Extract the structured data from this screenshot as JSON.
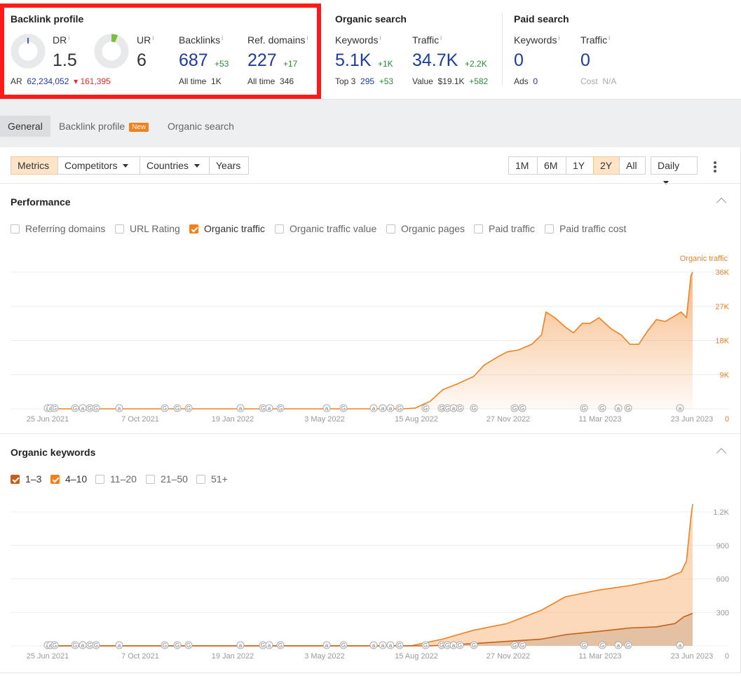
{
  "backlink_profile": {
    "title": "Backlink profile",
    "dr_label": "DR",
    "dr_value": "1.5",
    "ur_label": "UR",
    "ur_value": "6",
    "ar_label": "AR",
    "ar_value": "62,234,052",
    "ar_delta": "161,395",
    "backlinks_label": "Backlinks",
    "backlinks_value": "687",
    "backlinks_delta": "+53",
    "backlinks_alltime_label": "All time",
    "backlinks_alltime_value": "1K",
    "refdomains_label": "Ref. domains",
    "refdomains_value": "227",
    "refdomains_delta": "+17",
    "refdomains_alltime_label": "All time",
    "refdomains_alltime_value": "346"
  },
  "organic_search": {
    "title": "Organic search",
    "keywords_label": "Keywords",
    "keywords_value": "5.1K",
    "keywords_delta": "+1K",
    "top3_label": "Top 3",
    "top3_value": "295",
    "top3_delta": "+53",
    "traffic_label": "Traffic",
    "traffic_value": "34.7K",
    "traffic_delta": "+2.2K",
    "value_label": "Value",
    "value_value": "$19.1K",
    "value_delta": "+582"
  },
  "paid_search": {
    "title": "Paid search",
    "keywords_label": "Keywords",
    "keywords_value": "0",
    "ads_label": "Ads",
    "ads_value": "0",
    "traffic_label": "Traffic",
    "traffic_value": "0",
    "cost_label": "Cost",
    "cost_value": "N/A"
  },
  "tabs": {
    "general": "General",
    "backlink_profile": "Backlink profile",
    "new_badge": "New",
    "organic_search": "Organic search"
  },
  "toolbar": {
    "metrics": "Metrics",
    "competitors": "Competitors",
    "countries": "Countries",
    "years": "Years",
    "range_1m": "1M",
    "range_6m": "6M",
    "range_1y": "1Y",
    "range_2y": "2Y",
    "range_all": "All",
    "granularity": "Daily"
  },
  "performance": {
    "title": "Performance",
    "checkboxes": [
      "Referring domains",
      "URL Rating",
      "Organic traffic",
      "Organic traffic value",
      "Organic pages",
      "Paid traffic",
      "Paid traffic cost"
    ]
  },
  "keywords_panel": {
    "title": "Organic keywords",
    "checkboxes": [
      "1–3",
      "4–10",
      "11–20",
      "21–50",
      "51+"
    ]
  },
  "colors": {
    "accent": "#f2801f",
    "accent_dark": "#c95f17",
    "blue": "#1d3c9c",
    "green": "#2b8a3e",
    "red": "#d9302c",
    "highlight_border": "#ff1a1a"
  },
  "chart_data": [
    {
      "type": "area",
      "title": "",
      "series": [
        {
          "name": "Organic traffic",
          "x": [
            "2021-06-25",
            "2021-10-07",
            "2022-01-19",
            "2022-05-03",
            "2022-08-01",
            "2022-08-15",
            "2022-09-01",
            "2022-09-15",
            "2022-10-01",
            "2022-10-20",
            "2022-11-01",
            "2022-11-15",
            "2022-11-27",
            "2022-12-10",
            "2022-12-25",
            "2023-01-05",
            "2023-01-10",
            "2023-01-20",
            "2023-02-01",
            "2023-02-10",
            "2023-02-20",
            "2023-03-01",
            "2023-03-11",
            "2023-03-25",
            "2023-04-05",
            "2023-04-15",
            "2023-04-25",
            "2023-05-05",
            "2023-05-15",
            "2023-05-25",
            "2023-06-05",
            "2023-06-12",
            "2023-06-18",
            "2023-06-23",
            "2023-06-25"
          ],
          "values": [
            0,
            0,
            0,
            0,
            0,
            200,
            2000,
            5000,
            6500,
            8500,
            11500,
            13500,
            15000,
            15500,
            17000,
            19500,
            25500,
            24000,
            21500,
            20000,
            22500,
            22500,
            24000,
            21000,
            19500,
            17000,
            17000,
            20500,
            23500,
            23000,
            24500,
            25500,
            24000,
            35000,
            36000
          ]
        }
      ],
      "yticks": [
        0,
        9000,
        18000,
        27000,
        36000
      ],
      "ytick_labels": [
        "0",
        "9K",
        "18K",
        "27K",
        "36K"
      ],
      "ylim": [
        0,
        36000
      ],
      "xtick_labels": [
        "25 Jun 2021",
        "7 Oct 2021",
        "19 Jan 2022",
        "3 May 2022",
        "15 Aug 2022",
        "27 Nov 2022",
        "11 Mar 2023",
        "23 Jun 2023"
      ],
      "legend": "Organic traffic",
      "legend_position": "top-right",
      "grid": true
    },
    {
      "type": "area",
      "title": "",
      "series": [
        {
          "name": "4–10",
          "x": [
            "2021-06-25",
            "2022-08-10",
            "2022-09-15",
            "2022-10-20",
            "2022-11-27",
            "2023-01-05",
            "2023-02-01",
            "2023-03-11",
            "2023-04-15",
            "2023-05-10",
            "2023-05-25",
            "2023-06-05",
            "2023-06-12",
            "2023-06-18",
            "2023-06-23",
            "2023-06-25"
          ],
          "values": [
            0,
            0,
            60,
            140,
            200,
            320,
            440,
            500,
            540,
            580,
            600,
            640,
            660,
            760,
            1150,
            1270
          ]
        },
        {
          "name": "1–3",
          "x": [
            "2021-06-25",
            "2022-09-01",
            "2022-10-20",
            "2022-11-27",
            "2023-01-05",
            "2023-02-01",
            "2023-03-11",
            "2023-04-15",
            "2023-05-15",
            "2023-06-05",
            "2023-06-15",
            "2023-06-25"
          ],
          "values": [
            0,
            0,
            20,
            40,
            60,
            100,
            130,
            160,
            170,
            200,
            260,
            290
          ]
        }
      ],
      "yticks": [
        0,
        300,
        600,
        900,
        1200
      ],
      "ytick_labels": [
        "0",
        "300",
        "600",
        "900",
        "1.2K"
      ],
      "ylim": [
        0,
        1200
      ],
      "xtick_labels": [
        "25 Jun 2021",
        "7 Oct 2021",
        "19 Jan 2022",
        "3 May 2022",
        "15 Aug 2022",
        "27 Nov 2022",
        "11 Mar 2023",
        "23 Jun 2023"
      ],
      "grid": true
    }
  ],
  "annotation_markers": [
    "Ⓖ",
    "ⓐ"
  ]
}
